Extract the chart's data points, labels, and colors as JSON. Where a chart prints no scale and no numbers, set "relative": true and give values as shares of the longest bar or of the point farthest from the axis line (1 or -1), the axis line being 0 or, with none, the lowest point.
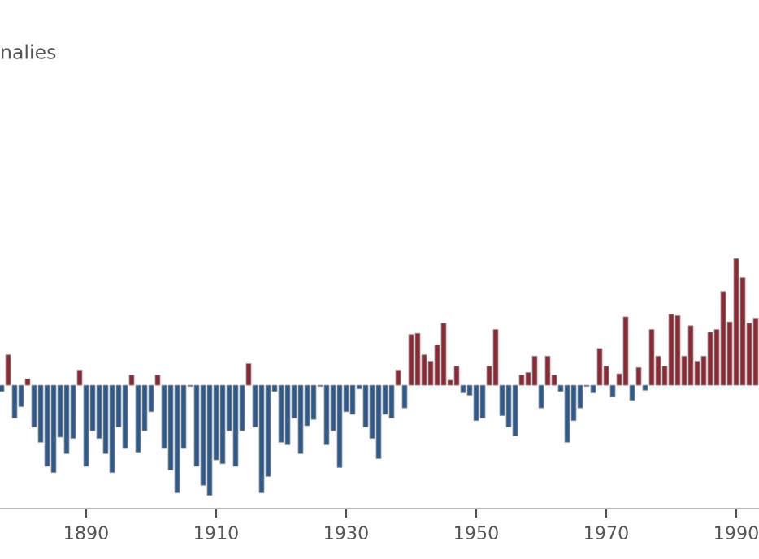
{
  "chart_data": {
    "type": "bar",
    "title": "nalies",
    "relative": true,
    "tick_labels": "x",
    "x": [
      1877,
      1878,
      1879,
      1880,
      1881,
      1882,
      1883,
      1884,
      1885,
      1886,
      1887,
      1888,
      1889,
      1890,
      1891,
      1892,
      1893,
      1894,
      1895,
      1896,
      1897,
      1898,
      1899,
      1900,
      1901,
      1902,
      1903,
      1904,
      1905,
      1906,
      1907,
      1908,
      1909,
      1910,
      1911,
      1912,
      1913,
      1914,
      1915,
      1916,
      1917,
      1918,
      1919,
      1920,
      1921,
      1922,
      1923,
      1924,
      1925,
      1926,
      1927,
      1928,
      1929,
      1930,
      1931,
      1932,
      1933,
      1934,
      1935,
      1936,
      1937,
      1938,
      1939,
      1940,
      1941,
      1942,
      1943,
      1944,
      1945,
      1946,
      1947,
      1948,
      1949,
      1950,
      1951,
      1952,
      1953,
      1954,
      1955,
      1956,
      1957,
      1958,
      1959,
      1960,
      1961,
      1962,
      1963,
      1964,
      1965,
      1966,
      1967,
      1968,
      1969,
      1970,
      1971,
      1972,
      1973,
      1974,
      1975,
      1976,
      1977,
      1978,
      1979,
      1980,
      1981,
      1982,
      1983,
      1984,
      1985,
      1986,
      1987,
      1988,
      1989,
      1990,
      1991,
      1992,
      1993
    ],
    "values": [
      -0.05,
      0.24,
      -0.26,
      -0.17,
      0.05,
      -0.33,
      -0.45,
      -0.64,
      -0.69,
      -0.41,
      -0.54,
      -0.42,
      0.12,
      -0.64,
      -0.36,
      -0.42,
      -0.54,
      -0.69,
      -0.33,
      -0.5,
      0.08,
      -0.53,
      -0.36,
      -0.21,
      0.08,
      -0.5,
      -0.67,
      -0.85,
      -0.5,
      -0.01,
      -0.64,
      -0.79,
      -0.87,
      -0.59,
      -0.62,
      -0.36,
      -0.64,
      -0.36,
      0.17,
      -0.33,
      -0.85,
      -0.72,
      -0.05,
      -0.45,
      -0.47,
      -0.26,
      -0.54,
      -0.32,
      -0.27,
      -0.01,
      -0.47,
      -0.36,
      -0.65,
      -0.21,
      -0.23,
      -0.03,
      -0.33,
      -0.42,
      -0.58,
      -0.23,
      -0.26,
      0.12,
      -0.18,
      0.4,
      0.41,
      0.24,
      0.19,
      0.32,
      0.49,
      0.04,
      0.15,
      -0.06,
      -0.08,
      -0.28,
      -0.26,
      0.15,
      0.44,
      -0.24,
      -0.33,
      -0.4,
      0.08,
      0.1,
      0.23,
      -0.18,
      0.23,
      0.08,
      -0.05,
      -0.45,
      -0.28,
      -0.18,
      -0.01,
      -0.06,
      0.29,
      0.15,
      -0.09,
      0.09,
      0.54,
      -0.12,
      0.14,
      -0.04,
      0.44,
      0.23,
      0.15,
      0.56,
      0.55,
      0.23,
      0.47,
      0.19,
      0.23,
      0.42,
      0.44,
      0.74,
      0.5,
      1,
      0.85,
      0.49,
      0.53
    ],
    "colors": [
      "#2f5a8c",
      "#8b2a35",
      "#2f5a8c",
      "#2f5a8c",
      "#8b2a35",
      "#2f5a8c",
      "#2f5a8c",
      "#2f5a8c",
      "#2f5a8c",
      "#2f5a8c",
      "#2f5a8c",
      "#2f5a8c",
      "#8b2a35",
      "#2f5a8c",
      "#2f5a8c",
      "#2f5a8c",
      "#2f5a8c",
      "#2f5a8c",
      "#2f5a8c",
      "#2f5a8c",
      "#8b2a35",
      "#2f5a8c",
      "#2f5a8c",
      "#2f5a8c",
      "#8b2a35",
      "#2f5a8c",
      "#2f5a8c",
      "#2f5a8c",
      "#2f5a8c",
      "#2f5a8c",
      "#2f5a8c",
      "#2f5a8c",
      "#2f5a8c",
      "#2f5a8c",
      "#2f5a8c",
      "#2f5a8c",
      "#2f5a8c",
      "#2f5a8c",
      "#8b2a35",
      "#2f5a8c",
      "#2f5a8c",
      "#2f5a8c",
      "#2f5a8c",
      "#2f5a8c",
      "#2f5a8c",
      "#2f5a8c",
      "#2f5a8c",
      "#2f5a8c",
      "#2f5a8c",
      "#2f5a8c",
      "#2f5a8c",
      "#2f5a8c",
      "#2f5a8c",
      "#2f5a8c",
      "#2f5a8c",
      "#2f5a8c",
      "#2f5a8c",
      "#2f5a8c",
      "#2f5a8c",
      "#2f5a8c",
      "#2f5a8c",
      "#8b2a35",
      "#2f5a8c",
      "#8b2a35",
      "#8b2a35",
      "#8b2a35",
      "#8b2a35",
      "#8b2a35",
      "#8b2a35",
      "#8b2a35",
      "#8b2a35",
      "#2f5a8c",
      "#2f5a8c",
      "#2f5a8c",
      "#2f5a8c",
      "#8b2a35",
      "#8b2a35",
      "#2f5a8c",
      "#2f5a8c",
      "#2f5a8c",
      "#8b2a35",
      "#8b2a35",
      "#8b2a35",
      "#2f5a8c",
      "#8b2a35",
      "#8b2a35",
      "#2f5a8c",
      "#2f5a8c",
      "#2f5a8c",
      "#2f5a8c",
      "#2f5a8c",
      "#2f5a8c",
      "#8b2a35",
      "#8b2a35",
      "#2f5a8c",
      "#8b2a35",
      "#8b2a35",
      "#2f5a8c",
      "#8b2a35",
      "#2f5a8c",
      "#8b2a35",
      "#8b2a35",
      "#8b2a35",
      "#8b2a35",
      "#8b2a35",
      "#8b2a35",
      "#8b2a35",
      "#8b2a35",
      "#8b2a35",
      "#8b2a35",
      "#8b2a35",
      "#8b2a35",
      "#8b2a35",
      "#8b2a35",
      "#8b2a35",
      "#8b2a35",
      "#8b2a35"
    ],
    "xlim": [
      1876.75,
      1993.5
    ],
    "xticks": [
      1890,
      1910,
      1930,
      1950,
      1970,
      1990
    ]
  }
}
